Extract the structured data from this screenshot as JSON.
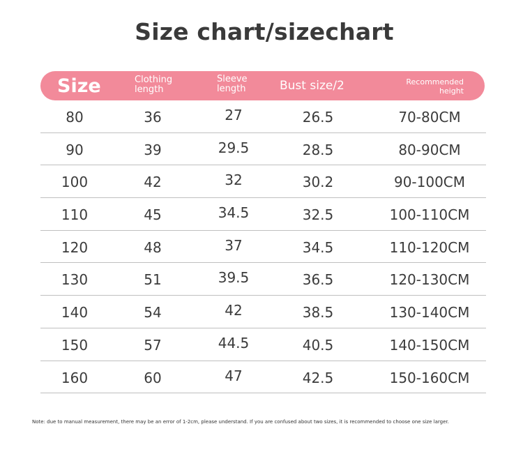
{
  "title": "Size chart/sizechart",
  "header": {
    "size": "Size",
    "clothing_length": "Clothing length",
    "sleeve_length": "Sleeve length",
    "bust": "Bust size/2",
    "recommended_height": "Recommended height"
  },
  "colors": {
    "header_bg": "#f28a9a",
    "header_text": "#ffffff",
    "divider": "#bfbfbf"
  },
  "rows": [
    {
      "size": "80",
      "clothing": "36",
      "sleeve": "27",
      "bust": "26.5",
      "height": "70-80CM"
    },
    {
      "size": "90",
      "clothing": "39",
      "sleeve": "29.5",
      "bust": "28.5",
      "height": "80-90CM"
    },
    {
      "size": "100",
      "clothing": "42",
      "sleeve": "32",
      "bust": "30.2",
      "height": "90-100CM"
    },
    {
      "size": "110",
      "clothing": "45",
      "sleeve": "34.5",
      "bust": "32.5",
      "height": "100-110CM"
    },
    {
      "size": "120",
      "clothing": "48",
      "sleeve": "37",
      "bust": "34.5",
      "height": "110-120CM"
    },
    {
      "size": "130",
      "clothing": "51",
      "sleeve": "39.5",
      "bust": "36.5",
      "height": "120-130CM"
    },
    {
      "size": "140",
      "clothing": "54",
      "sleeve": "42",
      "bust": "38.5",
      "height": "130-140CM"
    },
    {
      "size": "150",
      "clothing": "57",
      "sleeve": "44.5",
      "bust": "40.5",
      "height": "140-150CM"
    },
    {
      "size": "160",
      "clothing": "60",
      "sleeve": "47",
      "bust": "42.5",
      "height": "150-160CM"
    }
  ],
  "note": "Note: due to manual measurement, there may be an error of 1-2cm, please understand. If you are confused about two sizes, it is recommended to choose one size larger."
}
